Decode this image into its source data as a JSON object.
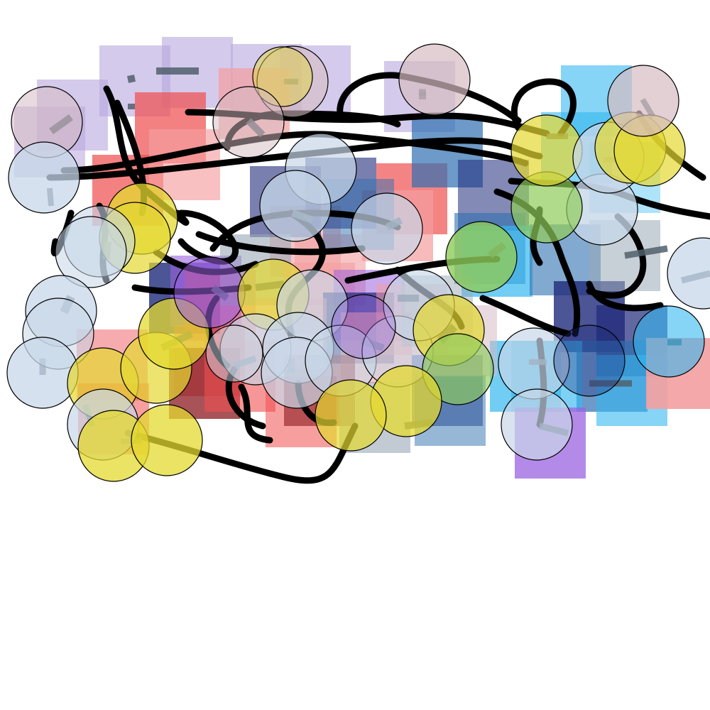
{
  "colors": {
    "background": "#ffffff",
    "lavender": "#b8a6dd",
    "red": "#f05050",
    "pink": "#f49ea0",
    "steel_blue": "#2f6fb0",
    "sky_blue": "#35b8f0",
    "navy": "#1f2a7a",
    "purple": "#9b63e0",
    "dark_red": "#8a1a20",
    "gray_blue": "#9aa9b6",
    "yellow": "#e4d930",
    "pale_blue": "#c7d7e8",
    "mauve": "#d6bcc2",
    "green": "#8fcc5a",
    "orange": "#e2a520",
    "ink": "#000000",
    "dash": "#50606c"
  }
}
